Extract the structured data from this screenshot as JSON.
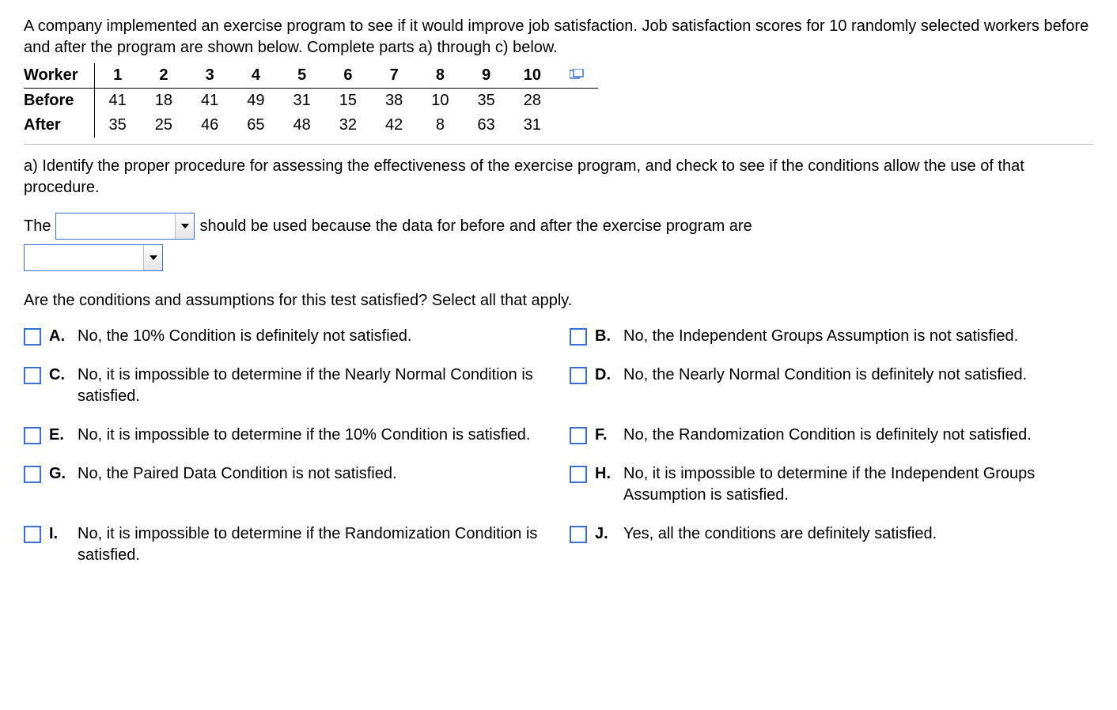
{
  "intro": "A company implemented an exercise program to see if it would improve job satisfaction. Job satisfaction scores for 10 randomly selected workers before and after the program are shown below. Complete parts a) through c) below.",
  "table": {
    "header_label": "Worker",
    "workers": [
      "1",
      "2",
      "3",
      "4",
      "5",
      "6",
      "7",
      "8",
      "9",
      "10"
    ],
    "rows": [
      {
        "label": "Before",
        "values": [
          "41",
          "18",
          "41",
          "49",
          "31",
          "15",
          "38",
          "10",
          "35",
          "28"
        ]
      },
      {
        "label": "After",
        "values": [
          "35",
          "25",
          "46",
          "65",
          "48",
          "32",
          "42",
          "8",
          "63",
          "31"
        ]
      }
    ]
  },
  "part_a": {
    "prompt": "a) Identify the proper procedure for assessing the effectiveness of the exercise program, and check to see if the conditions allow the use of that procedure.",
    "sentence_pre": "The",
    "sentence_mid": "should be used because the data for before and after the exercise program are"
  },
  "conditions_q": "Are the conditions and assumptions for this test satisfied? Select all that apply.",
  "options": [
    {
      "letter": "A.",
      "text": "No, the 10% Condition is definitely not satisfied."
    },
    {
      "letter": "B.",
      "text": "No, the Independent Groups Assumption is not satisfied."
    },
    {
      "letter": "C.",
      "text": "No, it is impossible to determine if the Nearly Normal Condition is satisfied."
    },
    {
      "letter": "D.",
      "text": "No, the Nearly Normal Condition is definitely not satisfied."
    },
    {
      "letter": "E.",
      "text": "No, it is impossible to determine if the 10% Condition is satisfied."
    },
    {
      "letter": "F.",
      "text": "No, the Randomization Condition is definitely not satisfied."
    },
    {
      "letter": "G.",
      "text": "No, the Paired Data Condition is not satisfied."
    },
    {
      "letter": "H.",
      "text": "No, it is impossible to determine if the Independent Groups Assumption is satisfied."
    },
    {
      "letter": "I.",
      "text": "No, it is impossible to determine if the Randomization Condition is satisfied."
    },
    {
      "letter": "J.",
      "text": "Yes, all the conditions are definitely satisfied."
    }
  ]
}
